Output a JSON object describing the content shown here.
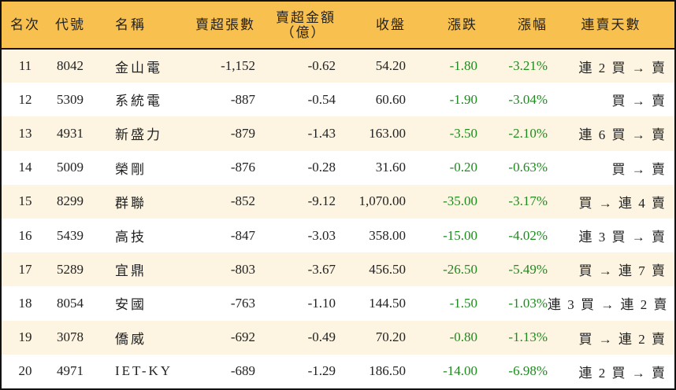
{
  "colors": {
    "header_bg": "#F8C04E",
    "row_odd": "#FDF5E2",
    "row_even": "#FFFFFF",
    "negative": "#1E8B1E"
  },
  "headers": {
    "rank": "名次",
    "code": "代號",
    "name": "名稱",
    "net_sell_lots": "賣超張數",
    "net_sell_amount": "賣超金額",
    "net_sell_amount_unit": "（億）",
    "close": "收盤",
    "change": "漲跌",
    "change_pct": "漲幅",
    "streak": "連賣天數"
  },
  "rows": [
    {
      "rank": "11",
      "code": "8042",
      "name": "金山電",
      "lots": "-1,152",
      "amount": "-0.62",
      "close": "54.20",
      "change": "-1.80",
      "pct": "-3.21%",
      "streak": "連 2 買 → 賣"
    },
    {
      "rank": "12",
      "code": "5309",
      "name": "系統電",
      "lots": "-887",
      "amount": "-0.54",
      "close": "60.60",
      "change": "-1.90",
      "pct": "-3.04%",
      "streak": "買 → 賣"
    },
    {
      "rank": "13",
      "code": "4931",
      "name": "新盛力",
      "lots": "-879",
      "amount": "-1.43",
      "close": "163.00",
      "change": "-3.50",
      "pct": "-2.10%",
      "streak": "連 6 買 → 賣"
    },
    {
      "rank": "14",
      "code": "5009",
      "name": "榮剛",
      "lots": "-876",
      "amount": "-0.28",
      "close": "31.60",
      "change": "-0.20",
      "pct": "-0.63%",
      "streak": "買 → 賣"
    },
    {
      "rank": "15",
      "code": "8299",
      "name": "群聯",
      "lots": "-852",
      "amount": "-9.12",
      "close": "1,070.00",
      "change": "-35.00",
      "pct": "-3.17%",
      "streak": "買 → 連 4 賣"
    },
    {
      "rank": "16",
      "code": "5439",
      "name": "高技",
      "lots": "-847",
      "amount": "-3.03",
      "close": "358.00",
      "change": "-15.00",
      "pct": "-4.02%",
      "streak": "連 3 買 → 賣"
    },
    {
      "rank": "17",
      "code": "5289",
      "name": "宜鼎",
      "lots": "-803",
      "amount": "-3.67",
      "close": "456.50",
      "change": "-26.50",
      "pct": "-5.49%",
      "streak": "買 → 連 7 賣"
    },
    {
      "rank": "18",
      "code": "8054",
      "name": "安國",
      "lots": "-763",
      "amount": "-1.10",
      "close": "144.50",
      "change": "-1.50",
      "pct": "-1.03%",
      "streak": "連 3 買 → 連 2 賣"
    },
    {
      "rank": "19",
      "code": "3078",
      "name": "僑威",
      "lots": "-692",
      "amount": "-0.49",
      "close": "70.20",
      "change": "-0.80",
      "pct": "-1.13%",
      "streak": "買 → 連 2 賣"
    },
    {
      "rank": "20",
      "code": "4971",
      "name": "IET-KY",
      "lots": "-689",
      "amount": "-1.29",
      "close": "186.50",
      "change": "-14.00",
      "pct": "-6.98%",
      "streak": "連 2 買 → 賣"
    }
  ]
}
